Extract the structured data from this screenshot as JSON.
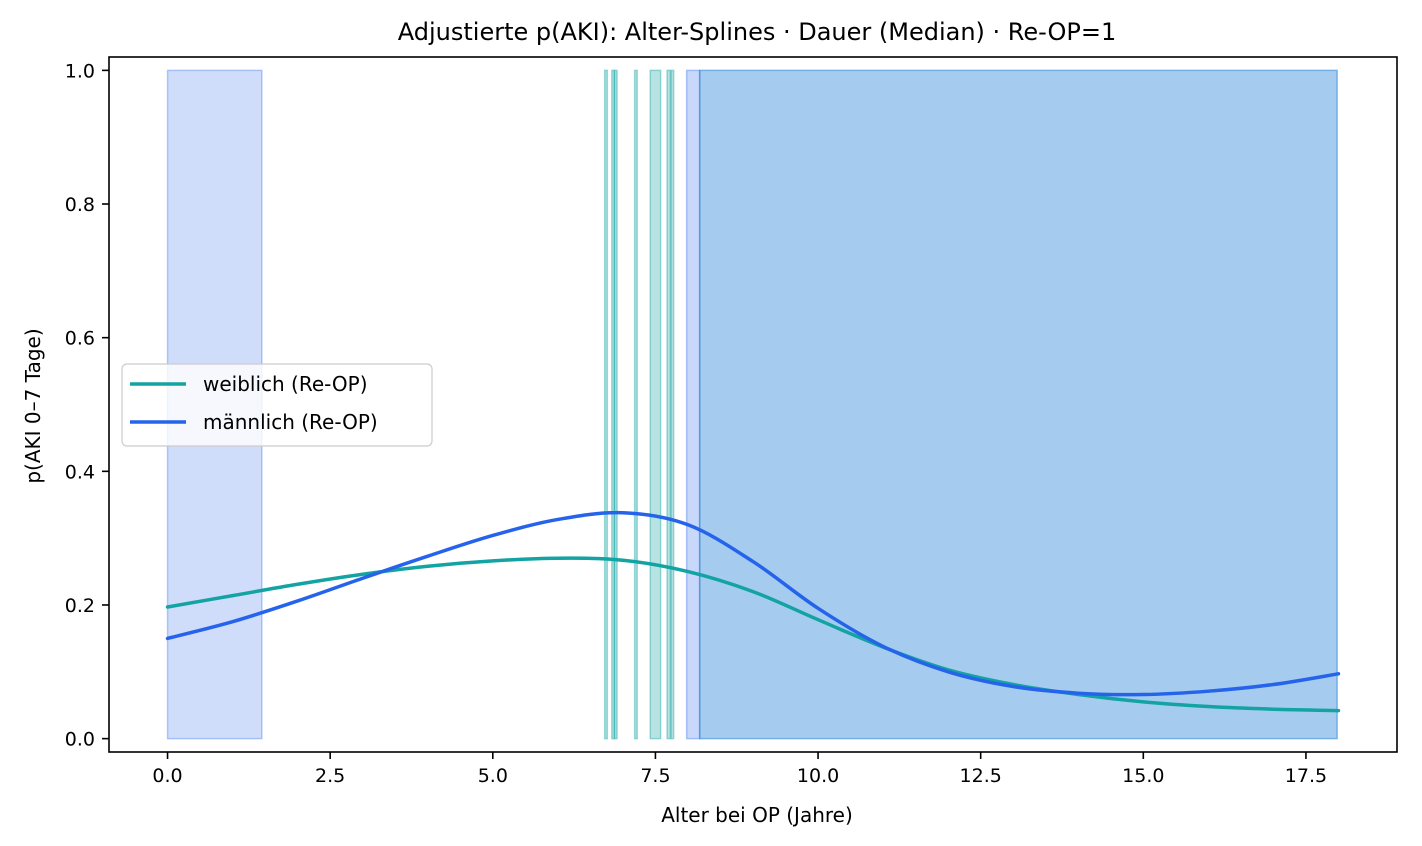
{
  "chart_data": {
    "type": "line",
    "title": "Adjustierte p(AKI): Alter-Splines · Dauer (Median) · Re-OP=1",
    "xlabel": "Alter bei OP (Jahre)",
    "ylabel": "p(AKI 0–7 Tage)",
    "xlim": [
      -0.9,
      18.9
    ],
    "ylim": [
      -0.02,
      1.02
    ],
    "x_ticks": [
      0.0,
      2.5,
      5.0,
      7.5,
      10.0,
      12.5,
      15.0,
      17.5
    ],
    "x_tick_labels": [
      "0.0",
      "2.5",
      "5.0",
      "7.5",
      "10.0",
      "12.5",
      "15.0",
      "17.5"
    ],
    "y_ticks": [
      0.0,
      0.2,
      0.4,
      0.6,
      0.8,
      1.0
    ],
    "y_tick_labels": [
      "0.0",
      "0.2",
      "0.4",
      "0.6",
      "0.8",
      "1.0"
    ],
    "grid": false,
    "legend_position": "center-left",
    "series": [
      {
        "name": "weiblich (Re-OP)",
        "color": "#13a3a3",
        "x": [
          0,
          1,
          2,
          3,
          4,
          5,
          6,
          7,
          8,
          9,
          10,
          11,
          12,
          13,
          14,
          15,
          16,
          17,
          18
        ],
        "values": [
          0.197,
          0.214,
          0.231,
          0.246,
          0.258,
          0.266,
          0.27,
          0.267,
          0.25,
          0.22,
          0.178,
          0.137,
          0.103,
          0.081,
          0.066,
          0.055,
          0.048,
          0.044,
          0.042
        ]
      },
      {
        "name": "männlich (Re-OP)",
        "color": "#2563eb",
        "x": [
          0,
          1,
          2,
          3,
          4,
          5,
          6,
          7,
          8,
          9,
          10,
          11,
          12,
          13,
          14,
          15,
          16,
          17,
          18
        ],
        "values": [
          0.15,
          0.175,
          0.206,
          0.24,
          0.273,
          0.304,
          0.328,
          0.338,
          0.32,
          0.265,
          0.195,
          0.138,
          0.1,
          0.078,
          0.068,
          0.066,
          0.071,
          0.081,
          0.097
        ]
      }
    ],
    "shaded_regions": [
      {
        "x0": 0.0,
        "x1": 1.45,
        "y0": 0.0,
        "y1": 1.0,
        "color": "#2563eb",
        "opacity": 0.22
      },
      {
        "x0": 6.72,
        "x1": 6.76,
        "y0": 0.0,
        "y1": 1.0,
        "color": "#13a3a3",
        "opacity": 0.3
      },
      {
        "x0": 6.83,
        "x1": 6.87,
        "y0": 0.0,
        "y1": 1.0,
        "color": "#13a3a3",
        "opacity": 0.3
      },
      {
        "x0": 6.87,
        "x1": 6.91,
        "y0": 0.0,
        "y1": 1.0,
        "color": "#13a3a3",
        "opacity": 0.3
      },
      {
        "x0": 7.18,
        "x1": 7.22,
        "y0": 0.0,
        "y1": 1.0,
        "color": "#13a3a3",
        "opacity": 0.3
      },
      {
        "x0": 7.42,
        "x1": 7.58,
        "y0": 0.0,
        "y1": 1.0,
        "color": "#13a3a3",
        "opacity": 0.3
      },
      {
        "x0": 7.68,
        "x1": 7.73,
        "y0": 0.0,
        "y1": 1.0,
        "color": "#13a3a3",
        "opacity": 0.3
      },
      {
        "x0": 7.74,
        "x1": 7.78,
        "y0": 0.0,
        "y1": 1.0,
        "color": "#13a3a3",
        "opacity": 0.3
      },
      {
        "x0": 7.98,
        "x1": 8.18,
        "y0": 0.0,
        "y1": 1.0,
        "color": "#2563eb",
        "opacity": 0.25
      },
      {
        "x0": 8.18,
        "x1": 17.98,
        "y0": 0.0,
        "y1": 1.0,
        "color": "#1f7fd6",
        "opacity": 0.4
      }
    ]
  }
}
